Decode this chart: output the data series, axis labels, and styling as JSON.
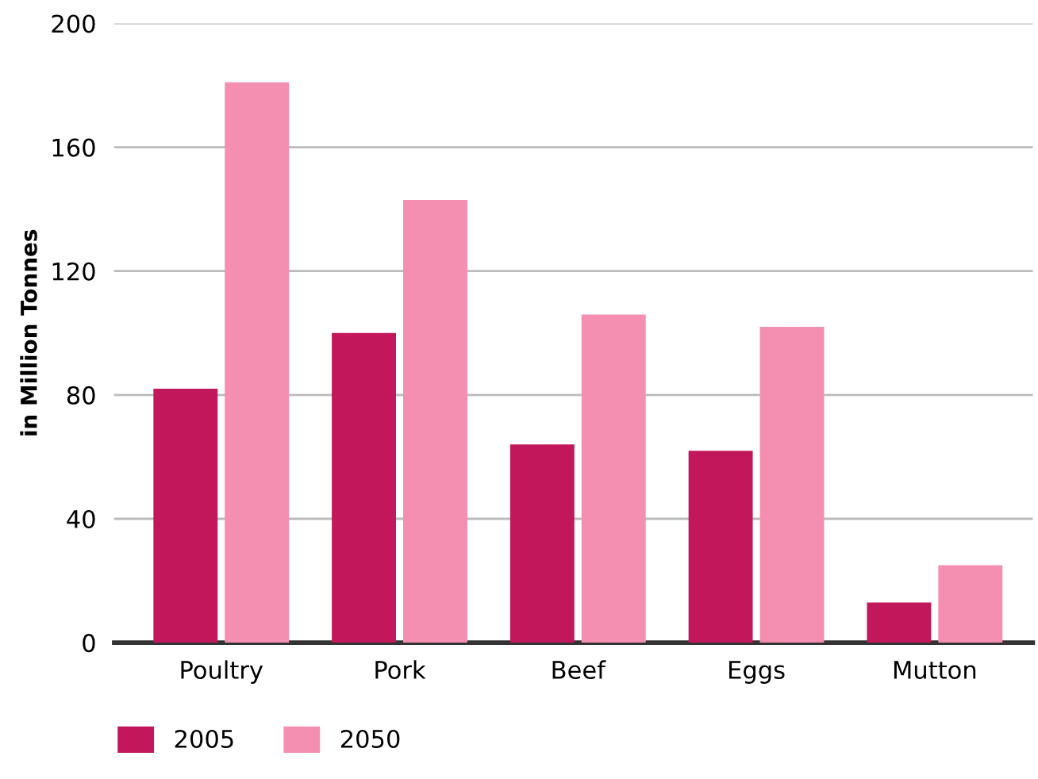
{
  "chart_data": {
    "type": "bar",
    "ylabel": "in Million Tonnes",
    "categories": [
      "Poultry",
      "Pork",
      "Beef",
      "Eggs",
      "Mutton"
    ],
    "series": [
      {
        "name": "2005",
        "color": "#c2185b",
        "values": [
          82,
          100,
          64,
          62,
          13
        ]
      },
      {
        "name": "2050",
        "color": "#f48fb1",
        "values": [
          181,
          143,
          106,
          102,
          25
        ]
      }
    ],
    "ylim": [
      0,
      200
    ],
    "yticks": [
      0,
      40,
      80,
      120,
      160,
      200
    ],
    "grid": "y",
    "legend": "bottom left"
  }
}
